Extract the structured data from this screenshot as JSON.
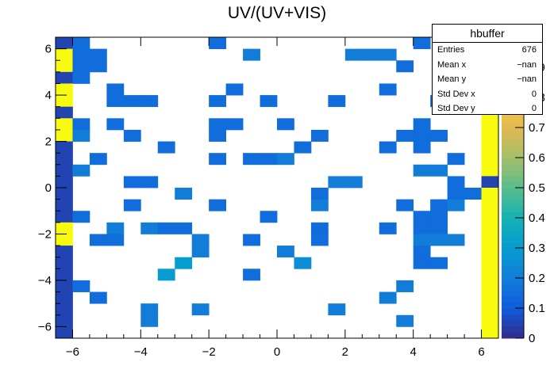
{
  "chart_data": {
    "type": "heatmap",
    "title": "UV/(UV+VIS)",
    "xlabel": "",
    "ylabel": "",
    "xlim": [
      -6.5,
      6.5
    ],
    "ylim": [
      -6.5,
      6.5
    ],
    "zlim": [
      0,
      1
    ],
    "x_ticks": [
      -6,
      -4,
      -2,
      0,
      2,
      4,
      6
    ],
    "x_tick_labels": [
      "−6",
      "−4",
      "−2",
      "0",
      "2",
      "4",
      "6"
    ],
    "y_ticks": [
      -6,
      -4,
      -2,
      0,
      2,
      4,
      6
    ],
    "y_tick_labels": [
      "−6",
      "−4",
      "−2",
      "0",
      "2",
      "4",
      "6"
    ],
    "z_ticks": [
      0,
      0.1,
      0.2,
      0.3,
      0.4,
      0.5,
      0.6,
      0.7,
      0.8,
      0.9
    ],
    "z_tick_labels": [
      "0",
      "0.1",
      "0.2",
      "0.3",
      "0.4",
      "0.5",
      "0.6",
      "0.7",
      "0.8",
      "0.9"
    ],
    "bins_x": 26,
    "bins_y": 26,
    "cells": [
      [
        0,
        0,
        0.05
      ],
      [
        1,
        0,
        0.15
      ],
      [
        9,
        0,
        0.15
      ],
      [
        21,
        0,
        0.15
      ],
      [
        25,
        0,
        0.05
      ],
      [
        0,
        1,
        1
      ],
      [
        1,
        1,
        0.15
      ],
      [
        2,
        1,
        0.15
      ],
      [
        11,
        1,
        0.2
      ],
      [
        17,
        1,
        0.2
      ],
      [
        18,
        1,
        0.2
      ],
      [
        19,
        1,
        0.2
      ],
      [
        25,
        1,
        0.05
      ],
      [
        0,
        2,
        1
      ],
      [
        1,
        2,
        0.15
      ],
      [
        2,
        2,
        0.15
      ],
      [
        20,
        2,
        0.15
      ],
      [
        25,
        2,
        1
      ],
      [
        0,
        3,
        0.05
      ],
      [
        1,
        3,
        0.15
      ],
      [
        25,
        3,
        0.05
      ],
      [
        0,
        4,
        1
      ],
      [
        3,
        4,
        0.15
      ],
      [
        10,
        4,
        0.15
      ],
      [
        19,
        4,
        0.15
      ],
      [
        25,
        4,
        1
      ],
      [
        0,
        5,
        1
      ],
      [
        3,
        5,
        0.15
      ],
      [
        4,
        5,
        0.15
      ],
      [
        5,
        5,
        0.15
      ],
      [
        9,
        5,
        0.15
      ],
      [
        12,
        5,
        0.15
      ],
      [
        16,
        5,
        0.15
      ],
      [
        22,
        5,
        0.15
      ],
      [
        24,
        5,
        0.15
      ],
      [
        25,
        5,
        1
      ],
      [
        0,
        6,
        0.05
      ],
      [
        25,
        6,
        1
      ],
      [
        0,
        7,
        1
      ],
      [
        1,
        7,
        0.15
      ],
      [
        3,
        7,
        0.15
      ],
      [
        9,
        7,
        0.15
      ],
      [
        10,
        7,
        0.15
      ],
      [
        13,
        7,
        0.15
      ],
      [
        21,
        7,
        0.15
      ],
      [
        25,
        7,
        1
      ],
      [
        0,
        8,
        1
      ],
      [
        1,
        8,
        0.2
      ],
      [
        4,
        8,
        0.15
      ],
      [
        9,
        8,
        0.15
      ],
      [
        15,
        8,
        0.15
      ],
      [
        20,
        8,
        0.15
      ],
      [
        21,
        8,
        0.15
      ],
      [
        22,
        8,
        0.15
      ],
      [
        25,
        8,
        1
      ],
      [
        0,
        9,
        0.05
      ],
      [
        6,
        9,
        0.15
      ],
      [
        14,
        9,
        0.15
      ],
      [
        19,
        9,
        0.15
      ],
      [
        21,
        9,
        0.15
      ],
      [
        25,
        9,
        1
      ],
      [
        0,
        10,
        0.05
      ],
      [
        2,
        10,
        0.15
      ],
      [
        9,
        10,
        0.15
      ],
      [
        11,
        10,
        0.15
      ],
      [
        12,
        10,
        0.15
      ],
      [
        13,
        10,
        0.2
      ],
      [
        23,
        10,
        0.15
      ],
      [
        25,
        10,
        1
      ],
      [
        0,
        11,
        0.05
      ],
      [
        1,
        11,
        0.2
      ],
      [
        21,
        11,
        0.2
      ],
      [
        22,
        11,
        0.2
      ],
      [
        25,
        11,
        1
      ],
      [
        0,
        12,
        0.05
      ],
      [
        4,
        12,
        0.15
      ],
      [
        5,
        12,
        0.15
      ],
      [
        16,
        12,
        0.2
      ],
      [
        17,
        12,
        0.2
      ],
      [
        23,
        12,
        0.15
      ],
      [
        25,
        12,
        0.05
      ],
      [
        0,
        13,
        0.05
      ],
      [
        7,
        13,
        0.2
      ],
      [
        15,
        13,
        0.15
      ],
      [
        23,
        13,
        0.15
      ],
      [
        24,
        13,
        0.15
      ],
      [
        25,
        13,
        1
      ],
      [
        0,
        14,
        0.05
      ],
      [
        4,
        14,
        0.15
      ],
      [
        9,
        14,
        0.15
      ],
      [
        15,
        14,
        0.2
      ],
      [
        20,
        14,
        0.15
      ],
      [
        22,
        14,
        0.15
      ],
      [
        23,
        14,
        0.2
      ],
      [
        25,
        14,
        1
      ],
      [
        0,
        15,
        0.05
      ],
      [
        1,
        15,
        0.15
      ],
      [
        12,
        15,
        0.15
      ],
      [
        21,
        15,
        0.15
      ],
      [
        22,
        15,
        0.15
      ],
      [
        25,
        15,
        1
      ],
      [
        0,
        16,
        1
      ],
      [
        3,
        16,
        0.2
      ],
      [
        5,
        16,
        0.2
      ],
      [
        6,
        16,
        0.15
      ],
      [
        7,
        16,
        0.15
      ],
      [
        15,
        16,
        0.15
      ],
      [
        19,
        16,
        0.15
      ],
      [
        21,
        16,
        0.15
      ],
      [
        22,
        16,
        0.15
      ],
      [
        25,
        16,
        1
      ],
      [
        0,
        17,
        1
      ],
      [
        2,
        17,
        0.15
      ],
      [
        3,
        17,
        0.15
      ],
      [
        8,
        17,
        0.2
      ],
      [
        11,
        17,
        0.15
      ],
      [
        15,
        17,
        0.15
      ],
      [
        21,
        17,
        0.2
      ],
      [
        22,
        17,
        0.2
      ],
      [
        23,
        17,
        0.2
      ],
      [
        25,
        17,
        1
      ],
      [
        0,
        18,
        0.05
      ],
      [
        8,
        18,
        0.2
      ],
      [
        13,
        18,
        0.2
      ],
      [
        21,
        18,
        0.15
      ],
      [
        25,
        18,
        1
      ],
      [
        0,
        19,
        0.05
      ],
      [
        7,
        19,
        0.3
      ],
      [
        14,
        19,
        0.25
      ],
      [
        21,
        19,
        0.15
      ],
      [
        22,
        19,
        0.15
      ],
      [
        25,
        19,
        1
      ],
      [
        0,
        20,
        0.05
      ],
      [
        6,
        20,
        0.3
      ],
      [
        11,
        20,
        0.15
      ],
      [
        25,
        20,
        1
      ],
      [
        0,
        21,
        0.05
      ],
      [
        1,
        21,
        0.15
      ],
      [
        20,
        21,
        0.2
      ],
      [
        25,
        21,
        1
      ],
      [
        0,
        22,
        0.05
      ],
      [
        2,
        22,
        0.15
      ],
      [
        19,
        22,
        0.2
      ],
      [
        25,
        22,
        1
      ],
      [
        0,
        23,
        0.05
      ],
      [
        5,
        23,
        0.2
      ],
      [
        8,
        23,
        0.2
      ],
      [
        16,
        23,
        0.2
      ],
      [
        25,
        23,
        1
      ],
      [
        0,
        24,
        0.05
      ],
      [
        5,
        24,
        0.2
      ],
      [
        20,
        24,
        0.2
      ],
      [
        25,
        24,
        1
      ],
      [
        0,
        25,
        0.05
      ],
      [
        25,
        25,
        1
      ]
    ]
  },
  "stats_box": {
    "title": "hbuffer",
    "rows": [
      {
        "key": "Entries",
        "value": "676"
      },
      {
        "key": "Mean x",
        "value": "−nan"
      },
      {
        "key": "Mean y",
        "value": "−nan"
      },
      {
        "key": "Std Dev x",
        "value": "0"
      },
      {
        "key": "Std Dev y",
        "value": "0"
      }
    ]
  }
}
